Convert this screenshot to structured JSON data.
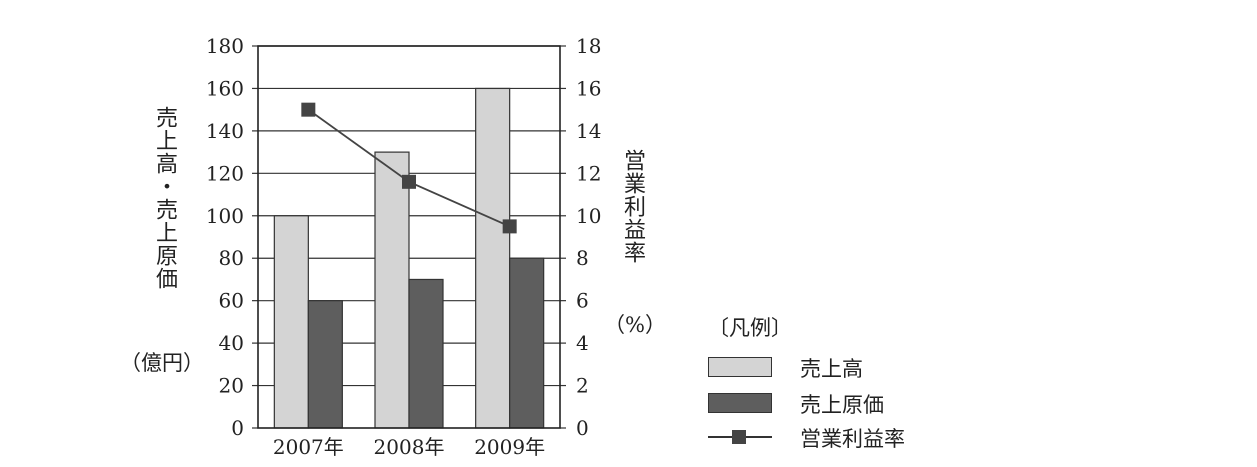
{
  "chart_data": {
    "type": "bar+line",
    "categories": [
      "2007年",
      "2008年",
      "2009年"
    ],
    "series": [
      {
        "name": "売上高",
        "type": "bar",
        "axis": "left",
        "values": [
          100,
          130,
          160
        ],
        "color": "#d4d4d4"
      },
      {
        "name": "売上原価",
        "type": "bar",
        "axis": "left",
        "values": [
          60,
          70,
          80
        ],
        "color": "#5e5e5e"
      },
      {
        "name": "営業利益率",
        "type": "line",
        "axis": "right",
        "values": [
          15,
          11.6,
          9.5
        ],
        "color": "#444444"
      }
    ],
    "left_axis": {
      "label": "売上高・売上原価",
      "unit": "（億円）",
      "ylim": [
        0,
        180
      ],
      "ticks": [
        0,
        20,
        40,
        60,
        80,
        100,
        120,
        140,
        160,
        180
      ]
    },
    "right_axis": {
      "label": "営業利益率",
      "unit": "（%）",
      "ylim": [
        0,
        18
      ],
      "ticks": [
        0,
        2,
        4,
        6,
        8,
        10,
        12,
        14,
        16,
        18
      ]
    },
    "grid": true,
    "legend": {
      "title": "〔凡例〕",
      "position": "right",
      "items": [
        "売上高",
        "売上原価",
        "営業利益率"
      ]
    }
  }
}
